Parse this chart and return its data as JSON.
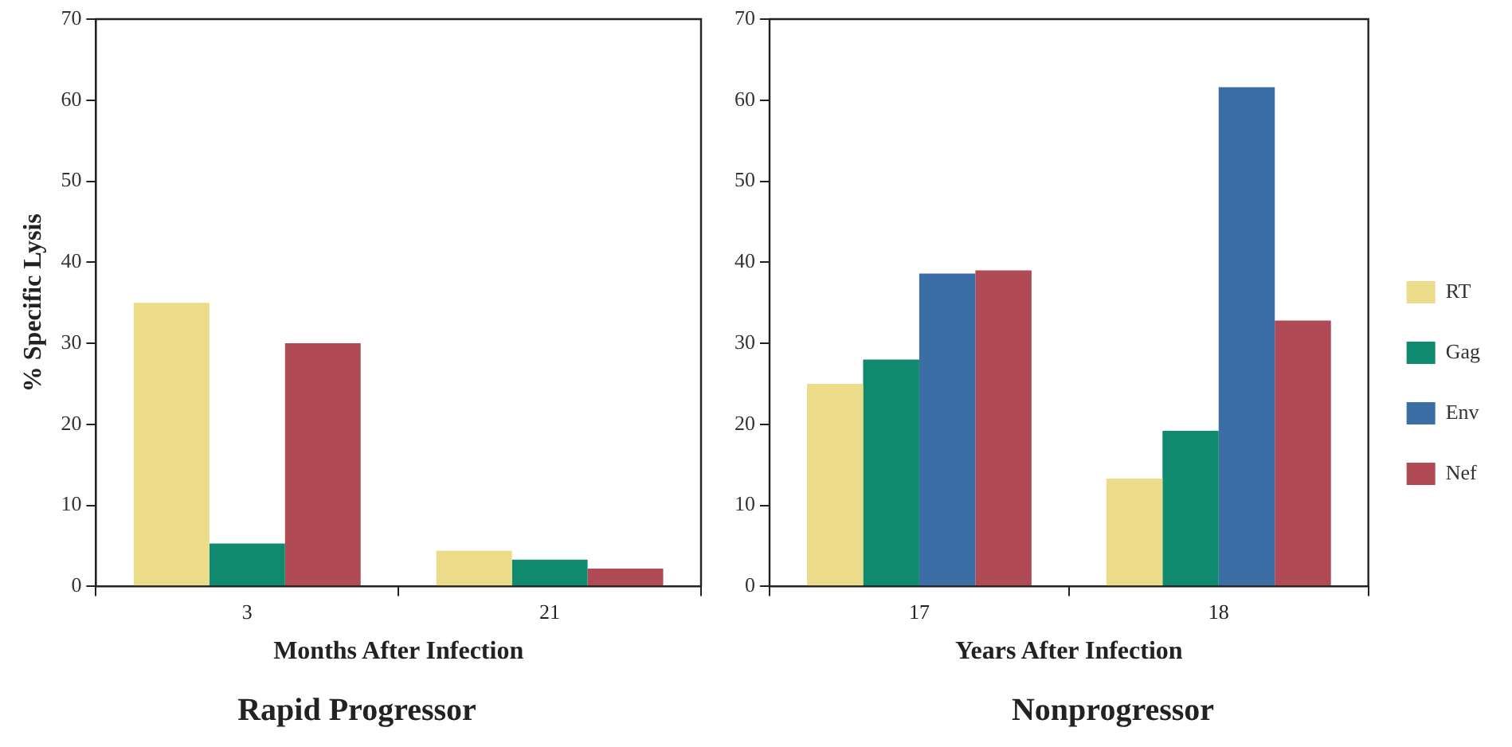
{
  "chart_data": [
    {
      "type": "bar",
      "title": "Rapid Progressor",
      "xlabel": "Months After Infection",
      "ylabel": "% Specific Lysis",
      "categories": [
        "3",
        "21"
      ],
      "series": [
        {
          "color": "#ecdc8a",
          "values": [
            35,
            4.4
          ]
        },
        {
          "color": "#0f8a6e",
          "values": [
            5.3,
            3.3
          ]
        },
        {
          "color": "#b04a55",
          "values": [
            30,
            2.2
          ]
        }
      ],
      "ylim": [
        0,
        70
      ],
      "yticks": [
        0,
        10,
        20,
        30,
        40,
        50,
        60,
        70
      ],
      "grid": false,
      "legend": false
    },
    {
      "type": "bar",
      "title": "Nonprogressor",
      "xlabel": "Years After Infection",
      "categories": [
        "17",
        "18"
      ],
      "series": [
        {
          "name": "RT",
          "color": "#ecdc8a",
          "values": [
            25,
            13.3
          ]
        },
        {
          "name": "Gag",
          "color": "#0f8a6e",
          "values": [
            28,
            19.2
          ]
        },
        {
          "name": "Env",
          "color": "#3a6ea5",
          "values": [
            38.6,
            61.6
          ]
        },
        {
          "name": "Nef",
          "color": "#b04a55",
          "values": [
            39,
            32.8
          ]
        }
      ],
      "ylim": [
        0,
        70
      ],
      "yticks": [
        0,
        10,
        20,
        30,
        40,
        50,
        60,
        70
      ],
      "grid": false,
      "legend": "right"
    }
  ]
}
